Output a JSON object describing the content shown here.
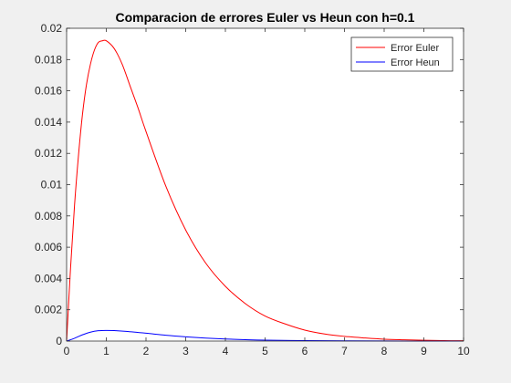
{
  "chart_data": {
    "type": "line",
    "title": "Comparacion de errores Euler vs Heun con h=0.1",
    "xlabel": "",
    "ylabel": "",
    "xlim": [
      0,
      10
    ],
    "ylim": [
      0,
      0.02
    ],
    "xticks": [
      0,
      1,
      2,
      3,
      4,
      5,
      6,
      7,
      8,
      9,
      10
    ],
    "yticks": [
      0,
      0.002,
      0.004,
      0.006,
      0.008,
      0.01,
      0.012,
      0.014,
      0.016,
      0.018,
      0.02
    ],
    "ytick_labels": [
      "0",
      "0.002",
      "0.004",
      "0.006",
      "0.008",
      "0.01",
      "0.012",
      "0.014",
      "0.016",
      "0.018",
      "0.02"
    ],
    "grid": false,
    "legend_position": "top-right",
    "series": [
      {
        "name": "Error Euler",
        "color": "#ff0000",
        "x": [
          0,
          0.1,
          0.2,
          0.3,
          0.4,
          0.5,
          0.6,
          0.7,
          0.8,
          0.9,
          1.0,
          1.2,
          1.4,
          1.6,
          1.8,
          2.0,
          2.5,
          3.0,
          3.5,
          4.0,
          4.5,
          5.0,
          5.5,
          6.0,
          6.5,
          7.0,
          7.5,
          8.0,
          8.5,
          9.0,
          9.5,
          10.0
        ],
        "y": [
          0,
          0.0047,
          0.0087,
          0.0119,
          0.0145,
          0.0164,
          0.0177,
          0.0186,
          0.0191,
          0.0192,
          0.0192,
          0.0187,
          0.0177,
          0.0163,
          0.0149,
          0.0134,
          0.0099,
          0.0071,
          0.005,
          0.0035,
          0.0024,
          0.0016,
          0.0011,
          0.0007,
          0.00045,
          0.0003,
          0.0002,
          0.00012,
          8e-05,
          5e-05,
          3e-05,
          2e-05
        ]
      },
      {
        "name": "Error Heun",
        "color": "#0000ff",
        "x": [
          0,
          0.2,
          0.4,
          0.6,
          0.8,
          1.0,
          1.2,
          1.5,
          2.0,
          2.5,
          3.0,
          3.5,
          4.0,
          4.5,
          5.0,
          6.0,
          7.0,
          8.0,
          9.0,
          10.0
        ],
        "y": [
          0,
          0.00018,
          0.0004,
          0.00057,
          0.00066,
          0.00068,
          0.00067,
          0.00062,
          0.0005,
          0.00037,
          0.00027,
          0.00019,
          0.00013,
          9e-05,
          6e-05,
          3e-05,
          1.2e-05,
          5e-06,
          2e-06,
          1e-06
        ]
      }
    ]
  }
}
